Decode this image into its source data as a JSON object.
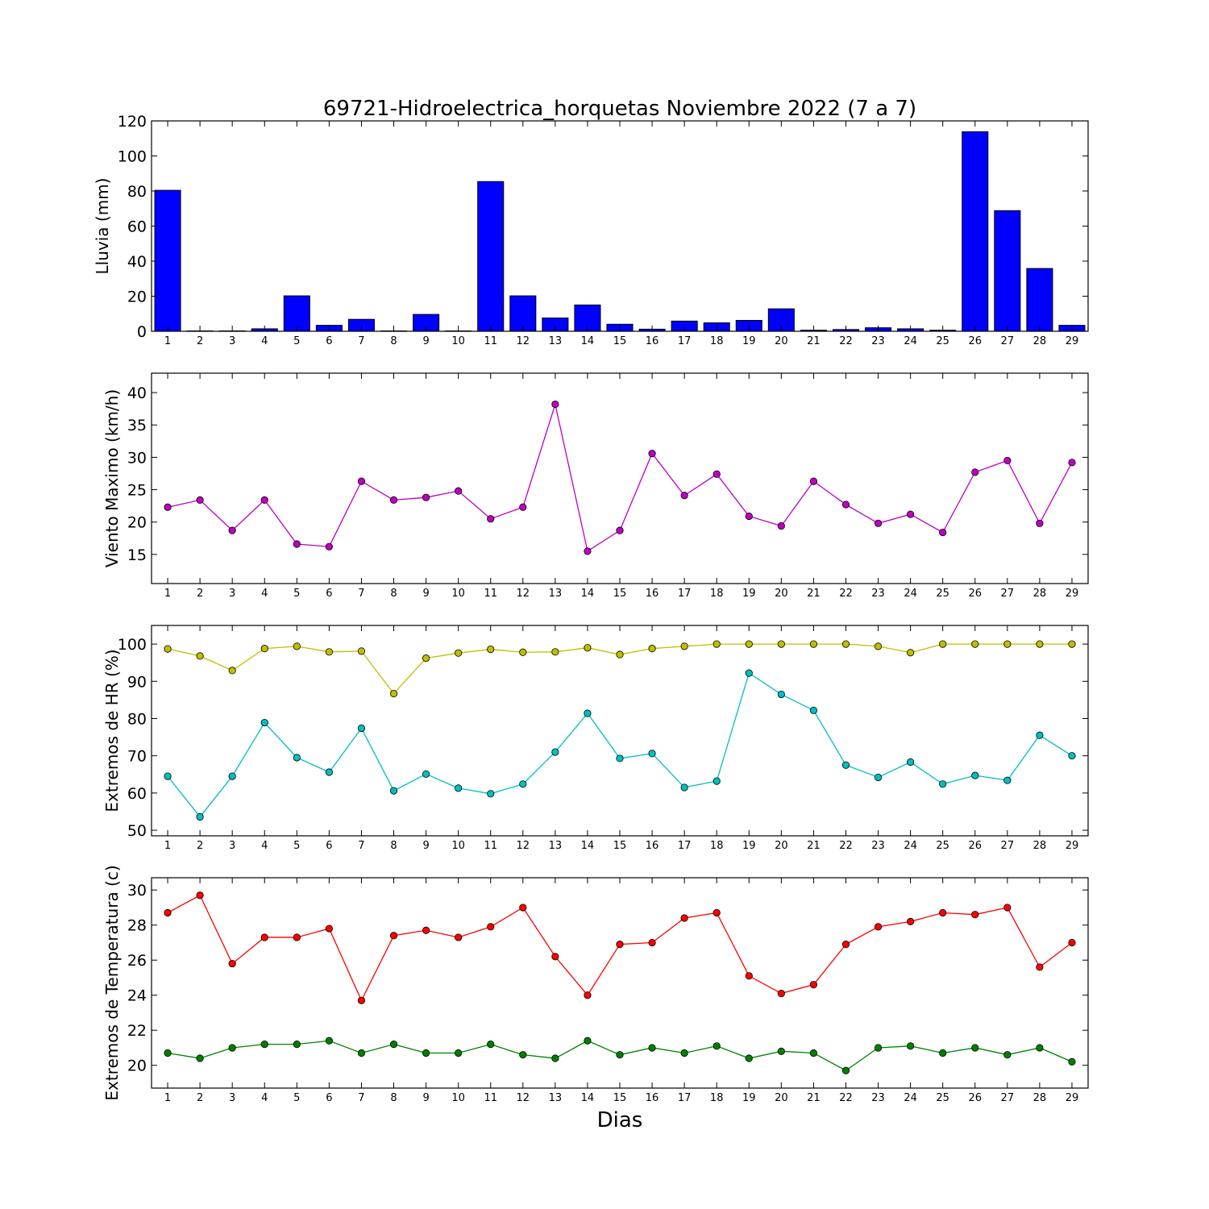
{
  "title": "69721-Hidroelectrica_horquetas Noviembre 2022  (7 a 7)",
  "xlabel": "Dias",
  "chart_data": [
    {
      "type": "bar",
      "ylabel": "Lluvia (mm)",
      "ylim": [
        0,
        120
      ],
      "yticks": [
        0,
        20,
        40,
        60,
        80,
        100,
        120
      ],
      "categories": [
        1,
        2,
        3,
        4,
        5,
        6,
        7,
        8,
        9,
        10,
        11,
        12,
        13,
        14,
        15,
        16,
        17,
        18,
        19,
        20,
        21,
        22,
        23,
        24,
        25,
        26,
        27,
        28,
        29
      ],
      "series": [
        {
          "color": "#0000ff",
          "values": [
            80.4,
            0.2,
            0.2,
            1.4,
            20.2,
            3.4,
            6.8,
            0.2,
            9.6,
            0.2,
            85.4,
            20.2,
            7.6,
            15.0,
            4.0,
            1.2,
            5.8,
            4.8,
            6.2,
            12.8,
            0.6,
            1.0,
            2.0,
            1.4,
            0.6,
            113.8,
            68.8,
            35.8,
            3.4
          ]
        }
      ],
      "grid": false
    },
    {
      "type": "line",
      "ylabel": "Viento Maximo (km/h)",
      "ylim": [
        10.5,
        43
      ],
      "yticks": [
        15,
        20,
        25,
        30,
        35,
        40
      ],
      "x": [
        1,
        2,
        3,
        4,
        5,
        6,
        7,
        8,
        9,
        10,
        11,
        12,
        13,
        14,
        15,
        16,
        17,
        18,
        19,
        20,
        21,
        22,
        23,
        24,
        25,
        26,
        27,
        28,
        29
      ],
      "series": [
        {
          "color": "#bf00bf",
          "values": [
            22.3,
            23.4,
            18.7,
            23.4,
            16.6,
            16.2,
            26.3,
            23.4,
            23.8,
            24.8,
            20.5,
            22.3,
            38.2,
            15.5,
            18.7,
            30.6,
            24.1,
            27.4,
            20.9,
            19.4,
            26.3,
            22.7,
            19.8,
            21.2,
            18.4,
            27.7,
            29.5,
            19.8,
            29.2
          ]
        }
      ],
      "grid": false
    },
    {
      "type": "line",
      "ylabel": "Extremos de HR (%)",
      "ylim": [
        48.5,
        105
      ],
      "yticks": [
        50,
        60,
        70,
        80,
        90,
        100
      ],
      "x": [
        1,
        2,
        3,
        4,
        5,
        6,
        7,
        8,
        9,
        10,
        11,
        12,
        13,
        14,
        15,
        16,
        17,
        18,
        19,
        20,
        21,
        22,
        23,
        24,
        25,
        26,
        27,
        28,
        29
      ],
      "series": [
        {
          "color": "#bfbf00",
          "values": [
            98.7,
            96.8,
            92.9,
            98.8,
            99.4,
            97.9,
            98.1,
            86.7,
            96.2,
            97.6,
            98.6,
            97.8,
            97.9,
            99.0,
            97.2,
            98.8,
            99.4,
            100,
            100,
            100,
            100,
            100,
            99.4,
            97.7,
            100,
            100,
            100,
            100,
            100
          ]
        },
        {
          "color": "#00bfbf",
          "values": [
            64.5,
            53.6,
            64.5,
            78.9,
            69.5,
            65.6,
            77.4,
            60.6,
            65.1,
            61.3,
            59.8,
            62.4,
            71.0,
            81.4,
            69.3,
            70.6,
            61.5,
            63.2,
            92.2,
            86.5,
            82.2,
            67.5,
            64.2,
            68.3,
            62.4,
            64.7,
            63.4,
            75.5,
            70.0
          ]
        }
      ],
      "grid": false
    },
    {
      "type": "line",
      "ylabel": "Extremos de Temperatura (c)",
      "ylim": [
        18.7,
        30.7
      ],
      "yticks": [
        20,
        22,
        24,
        26,
        28,
        30
      ],
      "x": [
        1,
        2,
        3,
        4,
        5,
        6,
        7,
        8,
        9,
        10,
        11,
        12,
        13,
        14,
        15,
        16,
        17,
        18,
        19,
        20,
        21,
        22,
        23,
        24,
        25,
        26,
        27,
        28,
        29
      ],
      "series": [
        {
          "color": "#ff0000",
          "values": [
            28.7,
            29.7,
            25.8,
            27.3,
            27.3,
            27.8,
            23.7,
            27.4,
            27.7,
            27.3,
            27.9,
            29.0,
            26.2,
            24.0,
            26.9,
            27.0,
            28.4,
            28.7,
            25.1,
            24.1,
            24.6,
            26.9,
            27.9,
            28.2,
            28.7,
            28.6,
            29.0,
            25.6,
            27.0
          ]
        },
        {
          "color": "#008000",
          "values": [
            20.7,
            20.4,
            21.0,
            21.2,
            21.2,
            21.4,
            20.7,
            21.2,
            20.7,
            20.7,
            21.2,
            20.6,
            20.4,
            21.4,
            20.6,
            21.0,
            20.7,
            21.1,
            20.4,
            20.8,
            20.7,
            19.7,
            21.0,
            21.1,
            20.7,
            21.0,
            20.6,
            21.0,
            20.2
          ]
        }
      ],
      "grid": false
    }
  ]
}
